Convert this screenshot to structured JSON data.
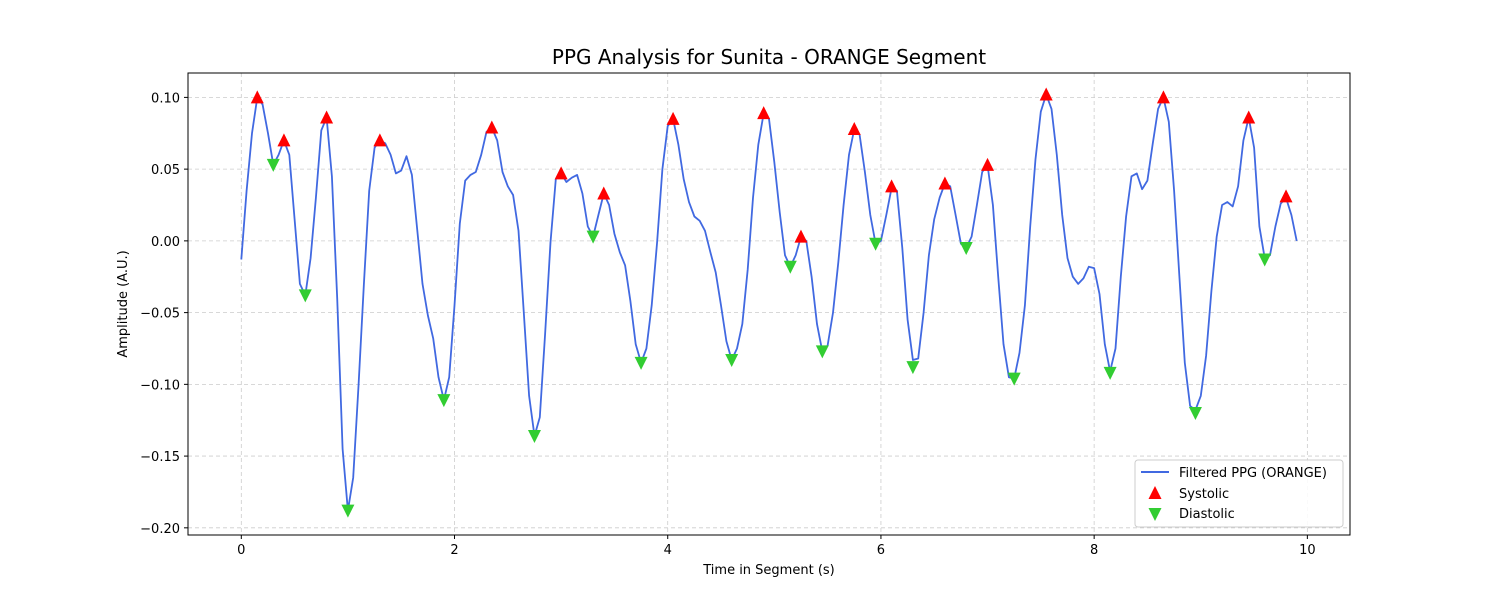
{
  "chart_data": {
    "type": "line",
    "title": "PPG Analysis for Sunita - ORANGE Segment",
    "xlabel": "Time in Segment (s)",
    "ylabel": "Amplitude (A.U.)",
    "xlim": [
      -0.5,
      10.4
    ],
    "ylim": [
      -0.205,
      0.117
    ],
    "xticks": [
      0,
      2,
      4,
      6,
      8,
      10
    ],
    "xtick_labels": [
      "0",
      "2",
      "4",
      "6",
      "8",
      "10"
    ],
    "yticks": [
      -0.2,
      -0.15,
      -0.1,
      -0.05,
      0.0,
      0.05,
      0.1
    ],
    "ytick_labels": [
      "−0.20",
      "−0.15",
      "−0.10",
      "−0.05",
      "0.00",
      "0.05",
      "0.10"
    ],
    "grid": true,
    "legend_position": "lower right",
    "series": [
      {
        "name": "Filtered PPG (ORANGE)",
        "type": "line",
        "color": "#4169e1",
        "points": [
          [
            0.0,
            -0.013
          ],
          [
            0.05,
            0.035
          ],
          [
            0.1,
            0.075
          ],
          [
            0.15,
            0.1
          ],
          [
            0.2,
            0.095
          ],
          [
            0.25,
            0.075
          ],
          [
            0.3,
            0.053
          ],
          [
            0.35,
            0.06
          ],
          [
            0.4,
            0.07
          ],
          [
            0.45,
            0.06
          ],
          [
            0.5,
            0.015
          ],
          [
            0.55,
            -0.03
          ],
          [
            0.6,
            -0.038
          ],
          [
            0.65,
            -0.012
          ],
          [
            0.7,
            0.03
          ],
          [
            0.75,
            0.077
          ],
          [
            0.8,
            0.086
          ],
          [
            0.85,
            0.045
          ],
          [
            0.9,
            -0.04
          ],
          [
            0.95,
            -0.145
          ],
          [
            1.0,
            -0.188
          ],
          [
            1.05,
            -0.165
          ],
          [
            1.1,
            -0.1
          ],
          [
            1.15,
            -0.03
          ],
          [
            1.2,
            0.035
          ],
          [
            1.25,
            0.065
          ],
          [
            1.3,
            0.07
          ],
          [
            1.35,
            0.068
          ],
          [
            1.4,
            0.06
          ],
          [
            1.45,
            0.047
          ],
          [
            1.5,
            0.049
          ],
          [
            1.55,
            0.059
          ],
          [
            1.6,
            0.046
          ],
          [
            1.65,
            0.008
          ],
          [
            1.7,
            -0.03
          ],
          [
            1.75,
            -0.052
          ],
          [
            1.8,
            -0.068
          ],
          [
            1.85,
            -0.095
          ],
          [
            1.9,
            -0.111
          ],
          [
            1.95,
            -0.095
          ],
          [
            2.0,
            -0.045
          ],
          [
            2.05,
            0.012
          ],
          [
            2.1,
            0.042
          ],
          [
            2.15,
            0.046
          ],
          [
            2.2,
            0.048
          ],
          [
            2.25,
            0.06
          ],
          [
            2.3,
            0.076
          ],
          [
            2.35,
            0.079
          ],
          [
            2.4,
            0.07
          ],
          [
            2.45,
            0.048
          ],
          [
            2.5,
            0.038
          ],
          [
            2.55,
            0.032
          ],
          [
            2.6,
            0.007
          ],
          [
            2.65,
            -0.05
          ],
          [
            2.7,
            -0.108
          ],
          [
            2.75,
            -0.136
          ],
          [
            2.8,
            -0.123
          ],
          [
            2.85,
            -0.065
          ],
          [
            2.9,
            -0.001
          ],
          [
            2.95,
            0.043
          ],
          [
            3.0,
            0.047
          ],
          [
            3.05,
            0.041
          ],
          [
            3.1,
            0.044
          ],
          [
            3.15,
            0.046
          ],
          [
            3.2,
            0.033
          ],
          [
            3.25,
            0.01
          ],
          [
            3.3,
            0.003
          ],
          [
            3.35,
            0.018
          ],
          [
            3.4,
            0.033
          ],
          [
            3.45,
            0.025
          ],
          [
            3.5,
            0.005
          ],
          [
            3.55,
            -0.008
          ],
          [
            3.6,
            -0.017
          ],
          [
            3.65,
            -0.042
          ],
          [
            3.7,
            -0.072
          ],
          [
            3.75,
            -0.085
          ],
          [
            3.8,
            -0.075
          ],
          [
            3.85,
            -0.045
          ],
          [
            3.9,
            -0.001
          ],
          [
            3.95,
            0.05
          ],
          [
            4.0,
            0.08
          ],
          [
            4.05,
            0.085
          ],
          [
            4.1,
            0.067
          ],
          [
            4.15,
            0.043
          ],
          [
            4.2,
            0.027
          ],
          [
            4.25,
            0.017
          ],
          [
            4.3,
            0.014
          ],
          [
            4.35,
            0.007
          ],
          [
            4.4,
            -0.008
          ],
          [
            4.45,
            -0.022
          ],
          [
            4.5,
            -0.045
          ],
          [
            4.55,
            -0.07
          ],
          [
            4.6,
            -0.083
          ],
          [
            4.65,
            -0.075
          ],
          [
            4.7,
            -0.058
          ],
          [
            4.75,
            -0.02
          ],
          [
            4.8,
            0.03
          ],
          [
            4.85,
            0.067
          ],
          [
            4.9,
            0.089
          ],
          [
            4.95,
            0.085
          ],
          [
            5.0,
            0.055
          ],
          [
            5.05,
            0.02
          ],
          [
            5.1,
            -0.01
          ],
          [
            5.15,
            -0.018
          ],
          [
            5.2,
            -0.01
          ],
          [
            5.25,
            0.003
          ],
          [
            5.3,
            0.0
          ],
          [
            5.35,
            -0.025
          ],
          [
            5.4,
            -0.058
          ],
          [
            5.45,
            -0.077
          ],
          [
            5.5,
            -0.073
          ],
          [
            5.55,
            -0.05
          ],
          [
            5.6,
            -0.015
          ],
          [
            5.65,
            0.025
          ],
          [
            5.7,
            0.06
          ],
          [
            5.75,
            0.078
          ],
          [
            5.8,
            0.074
          ],
          [
            5.85,
            0.048
          ],
          [
            5.9,
            0.018
          ],
          [
            5.95,
            -0.002
          ],
          [
            6.0,
            0.0
          ],
          [
            6.05,
            0.018
          ],
          [
            6.1,
            0.037
          ],
          [
            6.15,
            0.035
          ],
          [
            6.2,
            -0.005
          ],
          [
            6.25,
            -0.055
          ],
          [
            6.3,
            -0.083
          ],
          [
            6.35,
            -0.082
          ],
          [
            6.4,
            -0.05
          ],
          [
            6.45,
            -0.01
          ],
          [
            6.5,
            0.015
          ],
          [
            6.55,
            0.03
          ],
          [
            6.6,
            0.04
          ],
          [
            6.65,
            0.038
          ],
          [
            6.7,
            0.018
          ],
          [
            6.75,
            -0.002
          ],
          [
            6.8,
            -0.005
          ],
          [
            6.85,
            0.003
          ],
          [
            6.9,
            0.025
          ],
          [
            6.95,
            0.048
          ],
          [
            7.0,
            0.053
          ],
          [
            7.05,
            0.025
          ],
          [
            7.1,
            -0.025
          ],
          [
            7.15,
            -0.072
          ],
          [
            7.2,
            -0.095
          ],
          [
            7.25,
            -0.096
          ],
          [
            7.3,
            -0.078
          ],
          [
            7.35,
            -0.045
          ],
          [
            7.4,
            0.01
          ],
          [
            7.45,
            0.057
          ],
          [
            7.5,
            0.09
          ],
          [
            7.55,
            0.102
          ],
          [
            7.6,
            0.092
          ],
          [
            7.65,
            0.06
          ],
          [
            7.7,
            0.018
          ],
          [
            7.75,
            -0.012
          ],
          [
            7.8,
            -0.025
          ],
          [
            7.85,
            -0.03
          ],
          [
            7.9,
            -0.026
          ],
          [
            7.95,
            -0.018
          ],
          [
            8.0,
            -0.019
          ],
          [
            8.05,
            -0.037
          ],
          [
            8.1,
            -0.072
          ],
          [
            8.15,
            -0.091
          ],
          [
            8.2,
            -0.075
          ],
          [
            8.25,
            -0.025
          ],
          [
            8.3,
            0.017
          ],
          [
            8.35,
            0.045
          ],
          [
            8.4,
            0.047
          ],
          [
            8.45,
            0.036
          ],
          [
            8.5,
            0.042
          ],
          [
            8.55,
            0.068
          ],
          [
            8.6,
            0.092
          ],
          [
            8.65,
            0.1
          ],
          [
            8.7,
            0.083
          ],
          [
            8.75,
            0.035
          ],
          [
            8.8,
            -0.025
          ],
          [
            8.85,
            -0.085
          ],
          [
            8.9,
            -0.115
          ],
          [
            8.95,
            -0.118
          ],
          [
            9.0,
            -0.108
          ],
          [
            9.05,
            -0.08
          ],
          [
            9.1,
            -0.035
          ],
          [
            9.15,
            0.003
          ],
          [
            9.2,
            0.025
          ],
          [
            9.25,
            0.027
          ],
          [
            9.3,
            0.024
          ],
          [
            9.35,
            0.038
          ],
          [
            9.4,
            0.07
          ],
          [
            9.45,
            0.086
          ],
          [
            9.5,
            0.065
          ],
          [
            9.55,
            0.01
          ],
          [
            9.6,
            -0.012
          ],
          [
            9.65,
            -0.01
          ],
          [
            9.7,
            0.01
          ],
          [
            9.75,
            0.026
          ],
          [
            9.8,
            0.03
          ],
          [
            9.85,
            0.018
          ],
          [
            9.9,
            0.0
          ]
        ]
      },
      {
        "name": "Systolic",
        "type": "scatter",
        "marker": "triangle-up",
        "color": "#ff0000",
        "points": [
          [
            0.15,
            0.1
          ],
          [
            0.4,
            0.07
          ],
          [
            0.8,
            0.086
          ],
          [
            1.3,
            0.07
          ],
          [
            2.35,
            0.079
          ],
          [
            3.0,
            0.047
          ],
          [
            3.4,
            0.033
          ],
          [
            4.05,
            0.085
          ],
          [
            4.9,
            0.089
          ],
          [
            5.25,
            0.003
          ],
          [
            5.75,
            0.078
          ],
          [
            6.1,
            0.038
          ],
          [
            6.6,
            0.04
          ],
          [
            7.0,
            0.053
          ],
          [
            7.55,
            0.102
          ],
          [
            8.65,
            0.1
          ],
          [
            9.45,
            0.086
          ],
          [
            9.8,
            0.031
          ]
        ]
      },
      {
        "name": "Diastolic",
        "type": "scatter",
        "marker": "triangle-down",
        "color": "#32cd32",
        "points": [
          [
            0.3,
            0.053
          ],
          [
            0.6,
            -0.038
          ],
          [
            1.0,
            -0.188
          ],
          [
            1.9,
            -0.111
          ],
          [
            2.75,
            -0.136
          ],
          [
            3.3,
            0.003
          ],
          [
            3.75,
            -0.085
          ],
          [
            4.6,
            -0.083
          ],
          [
            5.15,
            -0.018
          ],
          [
            5.45,
            -0.077
          ],
          [
            5.95,
            -0.002
          ],
          [
            6.3,
            -0.088
          ],
          [
            6.8,
            -0.005
          ],
          [
            7.25,
            -0.096
          ],
          [
            8.15,
            -0.092
          ],
          [
            8.95,
            -0.12
          ],
          [
            9.6,
            -0.013
          ]
        ]
      }
    ]
  }
}
